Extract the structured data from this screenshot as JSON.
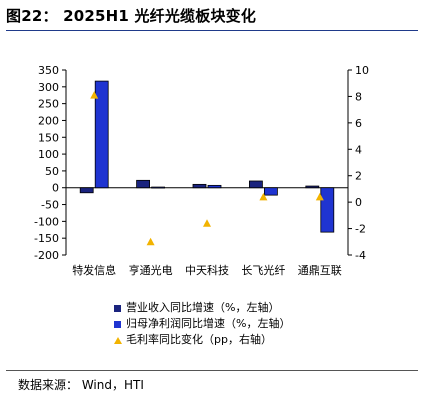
{
  "title": "图22： 2025H1 光纤光缆板块变化",
  "source": "数据来源： Wind，HTI",
  "colors": {
    "revenue": "#1a237e",
    "net_profit": "#1f34d1",
    "margin": "#f2b300",
    "title_rule": "#1f3a8a"
  },
  "chart_data": {
    "type": "bar",
    "categories": [
      "特发信息",
      "亨通光电",
      "中天科技",
      "长飞光纤",
      "通鼎互联"
    ],
    "series": [
      {
        "name": "营业收入同比增速（%，左轴）",
        "axis": "left",
        "kind": "bar",
        "values": [
          -15,
          22,
          10,
          20,
          5
        ]
      },
      {
        "name": "归母净利润同比增速（%，左轴）",
        "axis": "left",
        "kind": "bar",
        "values": [
          317,
          2,
          7,
          -22,
          -132
        ]
      },
      {
        "name": "毛利率同比变化（pp，右轴）",
        "axis": "right",
        "kind": "scatter",
        "values": [
          8.1,
          -3.0,
          -1.6,
          0.4,
          0.4
        ]
      }
    ],
    "y_left": {
      "ylim": [
        -200,
        350
      ],
      "ticks": [
        -200,
        -150,
        -100,
        -50,
        0,
        50,
        100,
        150,
        200,
        250,
        300,
        350
      ]
    },
    "y_right": {
      "ylim": [
        -4,
        10
      ],
      "ticks": [
        -4,
        -2,
        0,
        2,
        4,
        6,
        8,
        10
      ]
    },
    "legend_position": "bottom",
    "grid": false
  }
}
